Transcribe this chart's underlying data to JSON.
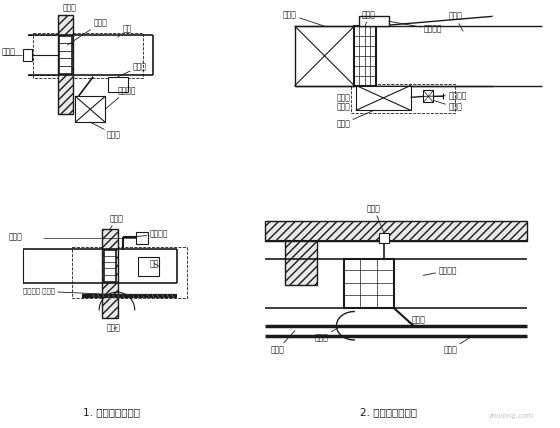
{
  "background_color": "#ffffff",
  "fig_width": 5.6,
  "fig_height": 4.28,
  "dpi": 100,
  "label1": "1. 防火阀安装方法",
  "label2": "2. 排烟阀安装方法",
  "watermark": "zhulong.com",
  "line_color": "#1a1a1a",
  "text_color": "#1a1a1a"
}
